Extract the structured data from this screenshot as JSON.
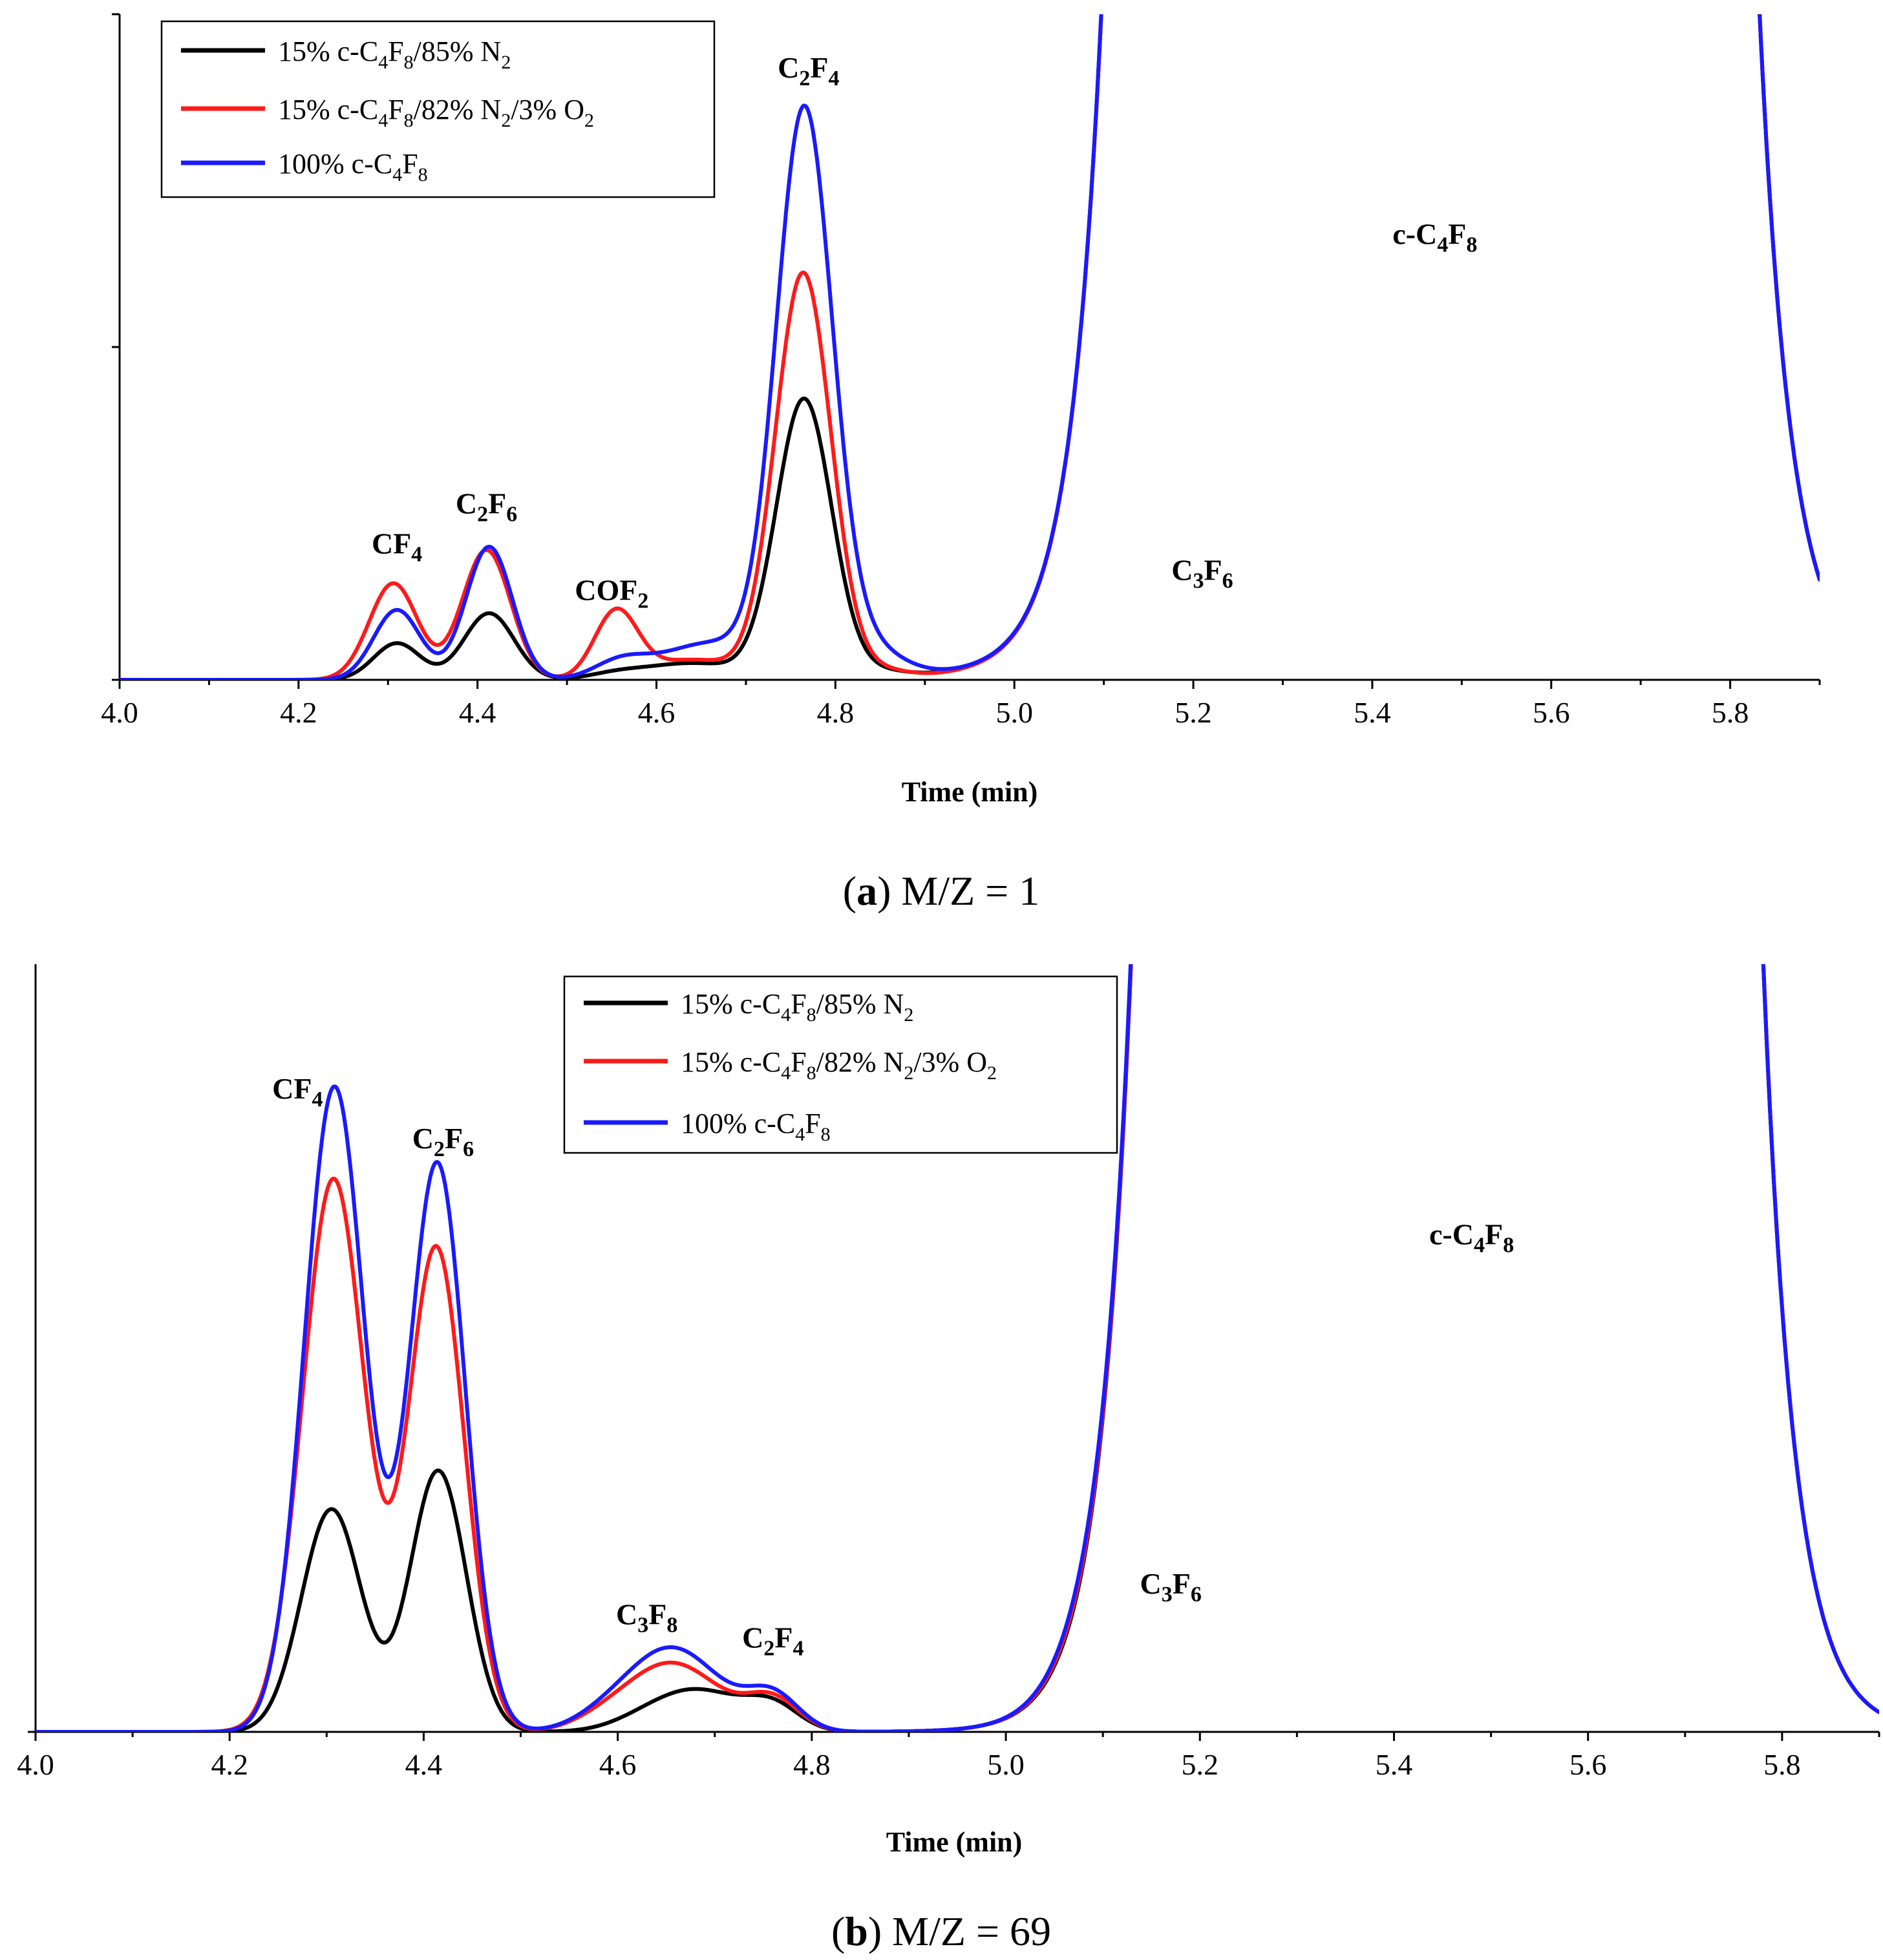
{
  "colors": {
    "black": "#000000",
    "red": "#ff1a1a",
    "blue": "#1a1aff"
  },
  "legend": [
    {
      "key": "n2",
      "pre": "15% c-C",
      "s1": "4",
      "mid": "F",
      "s2": "8",
      "post": "/85% N",
      "s3": "2",
      "tail": "",
      "s4": "",
      "color": "black"
    },
    {
      "key": "o2",
      "pre": "15% c-C",
      "s1": "4",
      "mid": "F",
      "s2": "8",
      "post": "/82% N",
      "s3": "2",
      "tail": "/3% O",
      "s4": "2",
      "color": "red"
    },
    {
      "key": "pure",
      "pre": "100% c-C",
      "s1": "4",
      "mid": "F",
      "s2": "8",
      "post": "",
      "s3": "",
      "tail": "",
      "s4": "",
      "color": "blue"
    }
  ],
  "chart_data": [
    {
      "type": "line",
      "caption_letter": "a",
      "caption_text": "M/Z = 1",
      "xlabel": "Time (min)",
      "ylabel": "",
      "xlim": [
        4.0,
        5.9
      ],
      "ylim": [
        0,
        100
      ],
      "xticks": [
        "4.0",
        "4.2",
        "4.4",
        "4.6",
        "4.8",
        "5.0",
        "5.2",
        "5.4",
        "5.6",
        "5.8"
      ],
      "yticks": [
        0,
        50,
        100
      ],
      "annotations": [
        {
          "base": "CF",
          "sub": "4",
          "x": 4.31,
          "y": 19
        },
        {
          "base": "C",
          "sub": "2",
          "base2": "F",
          "sub2": "6",
          "x": 4.41,
          "y": 25
        },
        {
          "base": "COF",
          "sub": "2",
          "x": 4.55,
          "y": 12
        },
        {
          "base": "C",
          "sub": "2",
          "base2": "F",
          "sub2": "4",
          "x": 4.77,
          "y": 90.5
        },
        {
          "base": "C",
          "sub": "3",
          "base2": "F",
          "sub2": "6",
          "x": 5.21,
          "y": 15
        },
        {
          "base": "c-C",
          "sub": "4",
          "base2": "F",
          "sub2": "8",
          "x": 5.47,
          "y": 65.5
        }
      ],
      "series": [
        {
          "name": "15% c-C4F8/85% N2",
          "color": "black",
          "peaks": [
            [
              5.5,
              4.31,
              0.026
            ],
            [
              10,
              4.413,
              0.028
            ],
            [
              0.7,
              4.555,
              0.03
            ],
            [
              2.5,
              4.64,
              0.055
            ],
            [
              42,
              4.765,
              0.031
            ],
            [
              1,
              4.85,
              0.03
            ],
            [
              0.8,
              5.0,
              0.1
            ],
            [
              7.5,
              5.21,
              0.035
            ]
          ],
          "main": {
            "start": 5.21,
            "rise": 5.24,
            "fall": 5.69,
            "end": 5.76,
            "tau": 0.035,
            "top": 6000,
            "base": 7.5
          }
        },
        {
          "name": "15% c-C4F8/82% N2/3% O2",
          "color": "red",
          "peaks": [
            [
              14.5,
              4.306,
              0.027
            ],
            [
              19.5,
              4.41,
              0.027
            ],
            [
              10,
              4.555,
              0.024
            ],
            [
              3,
              4.64,
              0.05
            ],
            [
              61,
              4.764,
              0.031
            ],
            [
              1.2,
              4.85,
              0.03
            ],
            [
              0.6,
              5.0,
              0.1
            ],
            [
              8.5,
              5.21,
              0.035
            ]
          ],
          "main": {
            "start": 5.21,
            "rise": 5.24,
            "fall": 5.69,
            "end": 5.76,
            "tau": 0.035,
            "top": 6000,
            "base": 8.5
          }
        },
        {
          "name": "100% c-C4F8",
          "color": "blue",
          "peaks": [
            [
              10.5,
              4.31,
              0.026
            ],
            [
              20,
              4.413,
              0.026
            ],
            [
              2.5,
              4.56,
              0.03
            ],
            [
              5.5,
              4.66,
              0.055
            ],
            [
              84,
              4.765,
              0.031
            ],
            [
              5,
              4.83,
              0.04
            ],
            [
              0.8,
              5.0,
              0.1
            ],
            [
              1.5,
              5.15,
              0.006
            ],
            [
              9,
              5.21,
              0.04
            ]
          ],
          "main": {
            "start": 5.21,
            "rise": 5.24,
            "fall": 5.69,
            "end": 5.76,
            "tau": 0.035,
            "top": 6000,
            "base": 9
          }
        }
      ]
    },
    {
      "type": "line",
      "caption_letter": "b",
      "caption_text": "M/Z = 69",
      "xlabel": "Time (min)",
      "ylabel": "",
      "xlim": [
        4.0,
        5.9
      ],
      "ylim": [
        0,
        100
      ],
      "xticks": [
        "4.0",
        "4.2",
        "4.4",
        "4.6",
        "4.8",
        "5.0",
        "5.2",
        "5.4",
        "5.6",
        "5.8"
      ],
      "yticks": [
        0
      ],
      "annotations": [
        {
          "base": "CF",
          "sub": "4",
          "x": 4.27,
          "y": 82.5
        },
        {
          "base": "C",
          "sub": "2",
          "base2": "F",
          "sub2": "6",
          "x": 4.42,
          "y": 76
        },
        {
          "base": "C",
          "sub": "3",
          "base2": "F",
          "sub2": "8",
          "x": 4.63,
          "y": 14
        },
        {
          "base": "C",
          "sub": "2",
          "base2": "F",
          "sub2": "4",
          "x": 4.76,
          "y": 11
        },
        {
          "base": "C",
          "sub": "3",
          "base2": "F",
          "sub2": "6",
          "x": 5.17,
          "y": 18
        },
        {
          "base": "c-C",
          "sub": "4",
          "base2": "F",
          "sub2": "8",
          "x": 5.48,
          "y": 63.5
        }
      ],
      "series": [
        {
          "name": "15% c-C4F8/85% N2",
          "color": "black",
          "peaks": [
            [
              29,
              4.305,
              0.031
            ],
            [
              34,
              4.415,
              0.029
            ],
            [
              5.5,
              4.68,
              0.048
            ],
            [
              3,
              4.76,
              0.027
            ],
            [
              0.4,
              4.62,
              0.03
            ],
            [
              1.2,
              5.13,
              0.04
            ],
            [
              8.5,
              5.215,
              0.035
            ]
          ],
          "main": {
            "start": 5.215,
            "rise": 5.26,
            "fall": 5.65,
            "end": 5.72,
            "tau": 0.032,
            "top": 6000,
            "base": 8.5
          }
        },
        {
          "name": "15% c-C4F8/82% N2/3% O2",
          "color": "red",
          "peaks": [
            [
              72,
              4.307,
              0.032
            ],
            [
              63,
              4.413,
              0.029
            ],
            [
              9,
              4.655,
              0.05
            ],
            [
              4,
              4.76,
              0.027
            ],
            [
              0.6,
              4.58,
              0.03
            ],
            [
              1.5,
              5.12,
              0.045
            ],
            [
              10.5,
              5.215,
              0.035
            ]
          ],
          "main": {
            "start": 5.215,
            "rise": 5.26,
            "fall": 5.65,
            "end": 5.72,
            "tau": 0.032,
            "top": 6000,
            "base": 10.5
          }
        },
        {
          "name": "100% c-C4F8",
          "color": "blue",
          "peaks": [
            [
              84,
              4.308,
              0.031
            ],
            [
              74,
              4.414,
              0.029
            ],
            [
              11,
              4.655,
              0.05
            ],
            [
              4.5,
              4.76,
              0.027
            ],
            [
              0.6,
              4.58,
              0.03
            ],
            [
              2.5,
              5.11,
              0.045
            ],
            [
              12.5,
              5.215,
              0.035
            ]
          ],
          "main": {
            "start": 5.215,
            "rise": 5.26,
            "fall": 5.65,
            "end": 5.72,
            "tau": 0.032,
            "top": 6000,
            "base": 12.5
          }
        }
      ]
    }
  ]
}
